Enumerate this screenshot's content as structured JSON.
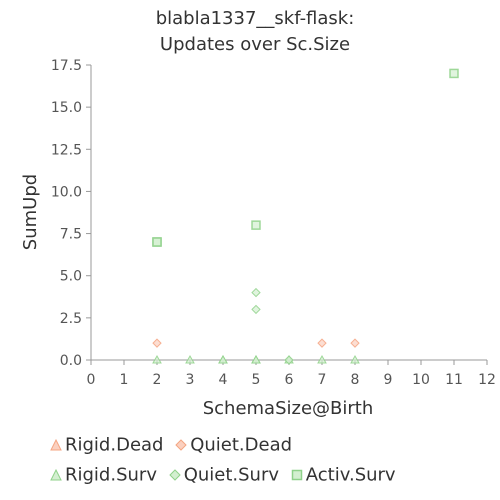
{
  "chart_data": {
    "type": "scatter",
    "title": [
      "blabla1337__skf-flask:",
      "Updates over Sc.Size"
    ],
    "xlabel": "SchemaSize@Birth",
    "ylabel": "SumUpd",
    "xlim": [
      0,
      12
    ],
    "ylim": [
      0,
      17.5
    ],
    "x_ticks": [
      "0",
      "1",
      "2",
      "3",
      "4",
      "5",
      "6",
      "7",
      "8",
      "9",
      "10",
      "11",
      "12"
    ],
    "y_ticks": [
      "0.0",
      "2.5",
      "5.0",
      "7.5",
      "10.0",
      "12.5",
      "15.0",
      "17.5"
    ],
    "grid": false,
    "legend_position": "bottom",
    "series": [
      {
        "name": "Rigid.Dead",
        "marker": "triangle",
        "color": "#f4a582",
        "points": []
      },
      {
        "name": "Quiet.Dead",
        "marker": "diamond",
        "color": "#f4a582",
        "points": [
          [
            2,
            1
          ],
          [
            7,
            1
          ],
          [
            8,
            1
          ]
        ]
      },
      {
        "name": "Rigid.Surv",
        "marker": "triangle",
        "color": "#8fd18a",
        "points": [
          [
            2,
            0
          ],
          [
            3,
            0
          ],
          [
            4,
            0
          ],
          [
            4,
            0
          ],
          [
            5,
            0
          ],
          [
            5,
            0
          ],
          [
            6,
            0
          ],
          [
            7,
            0
          ],
          [
            8,
            0
          ]
        ]
      },
      {
        "name": "Quiet.Surv",
        "marker": "diamond",
        "color": "#8fd18a",
        "points": [
          [
            5,
            4
          ],
          [
            5,
            3
          ],
          [
            6,
            0
          ]
        ]
      },
      {
        "name": "Activ.Surv",
        "marker": "square",
        "color": "#8fd18a",
        "points": [
          [
            2,
            7
          ],
          [
            2,
            7
          ],
          [
            5,
            8
          ],
          [
            11,
            17
          ]
        ]
      }
    ]
  }
}
